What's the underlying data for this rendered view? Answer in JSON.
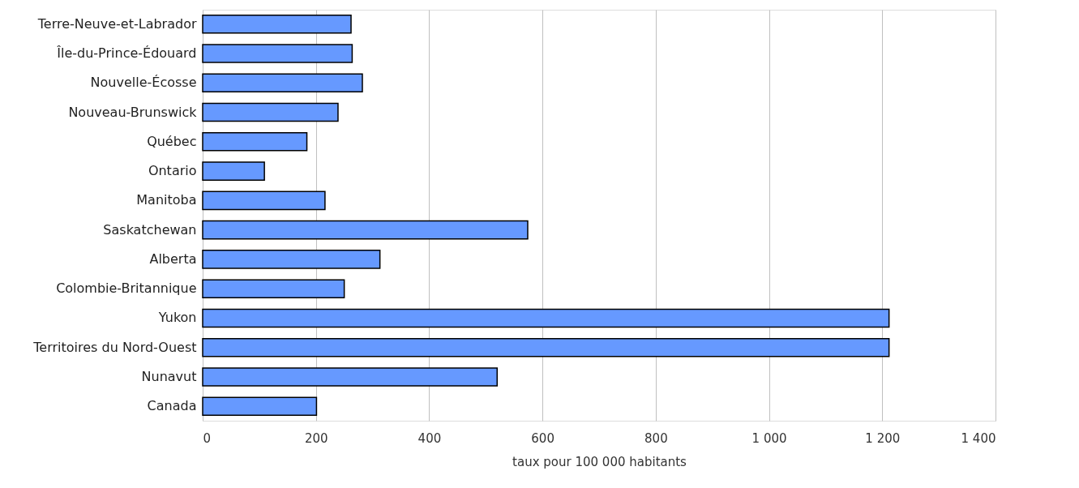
{
  "chart_data": {
    "type": "bar",
    "orientation": "horizontal",
    "xlabel": "taux pour 100 000 habitants",
    "categories": [
      "Terre-Neuve-et-Labrador",
      "Île-du-Prince-Édouard",
      "Nouvelle-Écosse",
      "Nouveau-Brunswick",
      "Québec",
      "Ontario",
      "Manitoba",
      "Saskatchewan",
      "Alberta",
      "Colombie-Britannique",
      "Yukon",
      "Territoires du Nord-Ouest",
      "Nunavut",
      "Canada"
    ],
    "series": [
      {
        "color": "#6699ff",
        "values": [
          262,
          264,
          282,
          239,
          184,
          109,
          216,
          574,
          313,
          250,
          1212,
          1212,
          520,
          201
        ]
      }
    ],
    "xlim": [
      0,
      1400
    ],
    "xticks": [
      0,
      200,
      400,
      600,
      800,
      {
        "value": 1000,
        "label": "1 000"
      },
      {
        "value": 1200,
        "label": "1 200"
      },
      {
        "value": 1400,
        "label": "1 400"
      }
    ],
    "grid": "x"
  }
}
